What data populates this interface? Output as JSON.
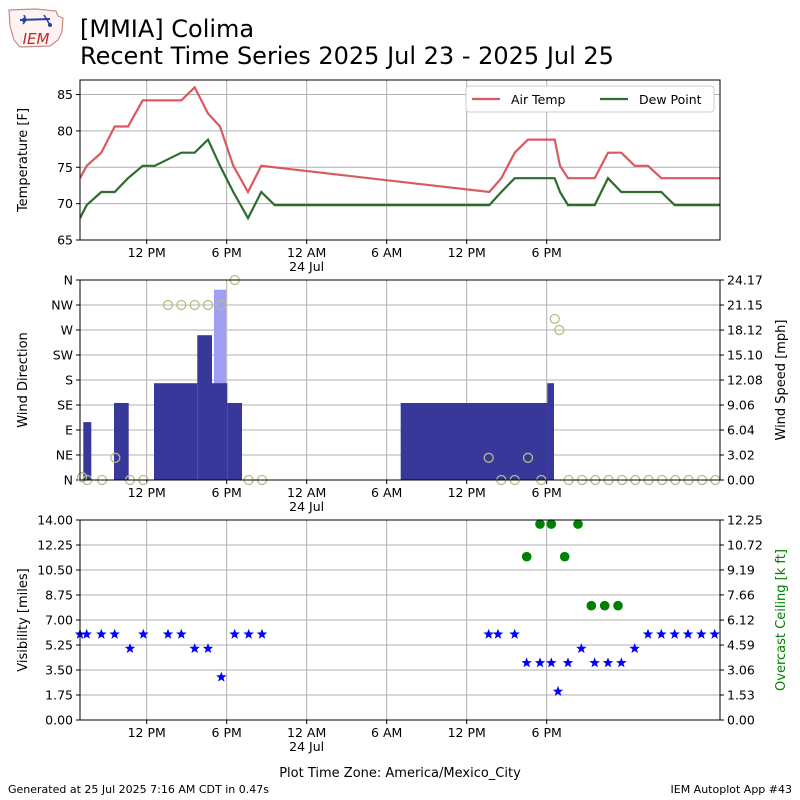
{
  "header": {
    "logo_text": "IEM",
    "title_line_1": "[MMIA] Colima",
    "title_line_2": "Recent Time Series 2025 Jul 23 - 2025 Jul 25"
  },
  "footer": {
    "generated": "Generated at 25 Jul 2025 7:16 AM CDT in 0.47s",
    "app": "IEM Autoplot App #43"
  },
  "colors": {
    "air_temp": "#d9595f",
    "dew_point": "#2e6b2e",
    "wind_speed_bar": "#373899",
    "wind_gust_bar": "#9f9ff5",
    "wind_direction": "#b5bd7d",
    "visibility": "#0000ff",
    "ceiling": "#008000"
  },
  "chart_data": [
    {
      "type": "line",
      "xlim": [
        7.0,
        55.0
      ],
      "x_ticks": [
        12,
        18,
        24,
        30,
        36,
        42
      ],
      "x_tick_labels": [
        "12 PM",
        "6 PM",
        "12 AM",
        "6 AM",
        "12 PM",
        "6 PM"
      ],
      "x_sublabel": "24 Jul",
      "ylabel": "Temperature [F]",
      "ylim": [
        65,
        87
      ],
      "yticks": [
        65,
        70,
        75,
        80,
        85
      ],
      "grid": true,
      "legend": "top-right",
      "series": [
        {
          "name": "Air Temp",
          "x": [
            7.0,
            7.5,
            8.6,
            9.6,
            10.6,
            11.7,
            12.6,
            14.6,
            15.6,
            16.6,
            17.5,
            18.5,
            19.6,
            20.6,
            37.7,
            38.6,
            39.6,
            40.6,
            42.6,
            43.0,
            43.6,
            45.6,
            46.6,
            47.6,
            48.6,
            49.6,
            50.6,
            55.0
          ],
          "y": [
            73.5,
            75.2,
            77.0,
            80.6,
            80.6,
            84.2,
            84.2,
            84.2,
            86.0,
            82.4,
            80.6,
            75.2,
            71.6,
            75.2,
            71.6,
            73.5,
            77.0,
            78.8,
            78.8,
            75.2,
            73.5,
            73.5,
            77.0,
            77.0,
            75.2,
            75.2,
            73.5,
            73.5
          ]
        },
        {
          "name": "Dew Point",
          "x": [
            7.0,
            7.5,
            8.6,
            9.6,
            10.6,
            11.7,
            12.6,
            14.6,
            15.6,
            16.6,
            17.5,
            18.5,
            19.6,
            20.6,
            21.6,
            37.7,
            38.6,
            39.6,
            40.6,
            42.6,
            43.0,
            43.6,
            45.6,
            46.6,
            47.6,
            48.6,
            49.6,
            50.6,
            51.6,
            52.6,
            55.0
          ],
          "y": [
            68.0,
            69.8,
            71.6,
            71.6,
            73.5,
            75.2,
            75.2,
            77.0,
            77.0,
            78.8,
            75.2,
            71.6,
            68.0,
            71.6,
            69.8,
            69.8,
            71.6,
            73.5,
            73.5,
            73.5,
            71.6,
            69.8,
            69.8,
            73.5,
            71.6,
            71.6,
            71.6,
            71.6,
            69.8,
            69.8,
            69.8
          ]
        }
      ]
    },
    {
      "type": "bar",
      "xlim": [
        7.0,
        55.0
      ],
      "x_ticks": [
        12,
        18,
        24,
        30,
        36,
        42
      ],
      "x_tick_labels": [
        "12 PM",
        "6 PM",
        "12 AM",
        "6 AM",
        "12 PM",
        "6 PM"
      ],
      "x_sublabel": "24 Jul",
      "ylabel": "Wind Direction",
      "ylim": [
        0,
        360
      ],
      "yticks": [
        0,
        45,
        90,
        135,
        180,
        225,
        270,
        315,
        360
      ],
      "ytick_labels": [
        "N",
        "NE",
        "E",
        "SE",
        "S",
        "SW",
        "W",
        "NW",
        "N"
      ],
      "y2label": "Wind Speed [mph]",
      "y2lim": [
        0,
        24.17
      ],
      "y2ticks": [
        0.0,
        3.02,
        6.04,
        9.06,
        12.08,
        15.1,
        18.12,
        21.15,
        24.17
      ],
      "y2tick_labels": [
        "0.00",
        "3.02",
        "6.04",
        "9.06",
        "12.08",
        "15.10",
        "18.12",
        "21.15",
        "24.17"
      ],
      "grid": true,
      "series": [
        {
          "name": "Wind Gust",
          "bars": [
            {
              "x0": 17.05,
              "x1": 17.95,
              "y": 23.0
            }
          ]
        },
        {
          "name": "Wind Speed",
          "bars": [
            {
              "x0": 7.25,
              "x1": 7.85,
              "y": 7.0
            },
            {
              "x0": 9.55,
              "x1": 10.65,
              "y": 9.3
            },
            {
              "x0": 12.55,
              "x1": 15.8,
              "y": 11.7
            },
            {
              "x0": 15.8,
              "x1": 16.9,
              "y": 17.5
            },
            {
              "x0": 16.9,
              "x1": 18.05,
              "y": 11.7
            },
            {
              "x0": 18.05,
              "x1": 19.15,
              "y": 9.3
            },
            {
              "x0": 31.05,
              "x1": 42.05,
              "y": 9.3
            },
            {
              "x0": 42.05,
              "x1": 42.55,
              "y": 11.7
            }
          ]
        },
        {
          "name": "Wind Direction",
          "x": [
            7.15,
            7.55,
            8.65,
            9.65,
            10.75,
            11.75,
            13.6,
            14.6,
            15.6,
            16.6,
            17.6,
            18.6,
            19.65,
            20.65,
            37.65,
            38.6,
            39.6,
            40.6,
            41.6,
            42.6,
            42.95,
            43.65,
            44.65,
            45.65,
            46.65,
            47.65,
            48.65,
            49.65,
            50.65,
            51.65,
            52.65,
            53.65,
            54.65
          ],
          "y": [
            5,
            0,
            0,
            40,
            0,
            0,
            315,
            315,
            315,
            315,
            315,
            360,
            0,
            0,
            40,
            0,
            0,
            40,
            0,
            290,
            270,
            0,
            0,
            0,
            0,
            0,
            0,
            0,
            0,
            0,
            0,
            0,
            0
          ]
        }
      ]
    },
    {
      "type": "scatter",
      "xlim": [
        7.0,
        55.0
      ],
      "x_ticks": [
        12,
        18,
        24,
        30,
        36,
        42
      ],
      "x_tick_labels": [
        "12 PM",
        "6 PM",
        "12 AM",
        "6 AM",
        "12 PM",
        "6 PM"
      ],
      "x_sublabel": "24 Jul",
      "xlabel": "Plot Time Zone: America/Mexico_City",
      "ylabel": "Visibility [miles]",
      "ylim": [
        0,
        14
      ],
      "yticks": [
        0.0,
        1.75,
        3.5,
        5.25,
        7.0,
        8.75,
        10.5,
        12.25,
        14.0
      ],
      "ytick_labels": [
        "0.00",
        "1.75",
        "3.50",
        "5.25",
        "7.00",
        "8.75",
        "10.50",
        "12.25",
        "14.00"
      ],
      "y2label": "Overcast Ceiling [k ft]",
      "y2lim": [
        0,
        12.25
      ],
      "y2ticks": [
        0.0,
        1.53,
        3.06,
        4.59,
        6.12,
        7.66,
        9.19,
        10.72,
        12.25
      ],
      "y2tick_labels": [
        "0.00",
        "1.53",
        "3.06",
        "4.59",
        "6.12",
        "7.66",
        "9.19",
        "10.72",
        "12.25"
      ],
      "grid": true,
      "series": [
        {
          "name": "Visibility",
          "x": [
            7.0,
            7.5,
            8.6,
            9.6,
            10.75,
            11.75,
            13.6,
            14.6,
            15.6,
            16.6,
            17.6,
            18.6,
            19.65,
            20.65,
            37.65,
            38.35,
            39.6,
            40.5,
            41.5,
            42.35,
            42.85,
            43.6,
            44.6,
            45.6,
            46.6,
            47.6,
            48.6,
            49.6,
            50.6,
            51.6,
            52.6,
            53.6,
            54.6
          ],
          "y": [
            6,
            6,
            6,
            6,
            5,
            6,
            6,
            6,
            5,
            5,
            3,
            6,
            6,
            6,
            6,
            6,
            6,
            4,
            4,
            4,
            2,
            4,
            5,
            4,
            4,
            4,
            5,
            6,
            6,
            6,
            6,
            6,
            6
          ]
        },
        {
          "name": "Overcast Ceiling",
          "x": [
            40.5,
            41.5,
            42.35,
            43.35,
            44.35,
            45.35,
            46.35,
            47.35
          ],
          "y": [
            10.0,
            12.0,
            12.0,
            10.0,
            12.0,
            7.0,
            7.0,
            7.0
          ]
        }
      ]
    }
  ]
}
